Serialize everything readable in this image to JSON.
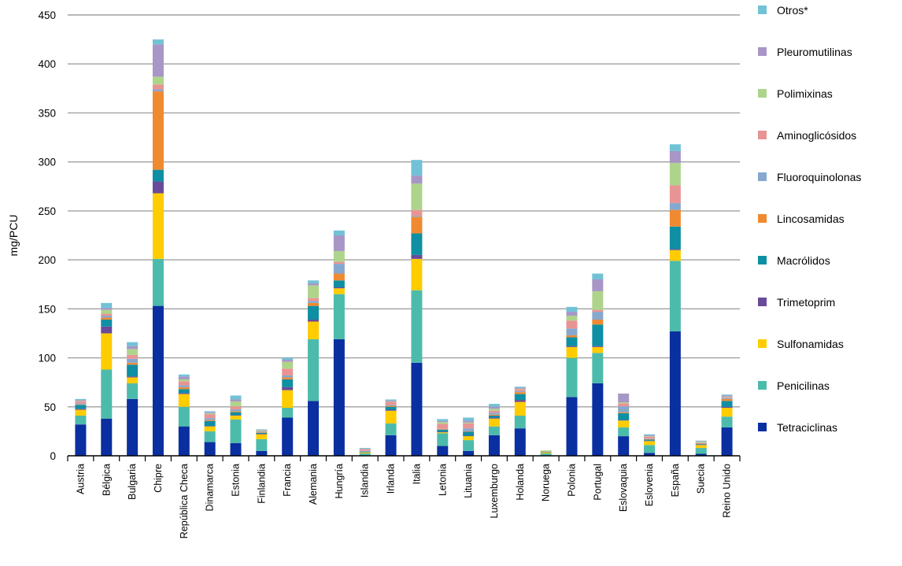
{
  "chart_data": {
    "type": "bar",
    "stacked": true,
    "title": "",
    "xlabel": "",
    "ylabel": "mg/PCU",
    "ylim": [
      0,
      450
    ],
    "yticks": [
      0,
      50,
      100,
      150,
      200,
      250,
      300,
      350,
      400,
      450
    ],
    "grid": true,
    "legend_position": "right",
    "categories": [
      "Austria",
      "Bélgica",
      "Bulgaria",
      "Chipre",
      "República Checa",
      "Dinamarca",
      "Estonia",
      "Finlandia",
      "Francia",
      "Alemania",
      "Hungría",
      "Islandia",
      "Irlanda",
      "Italia",
      "Letonia",
      "Lituania",
      "Luxemburgo",
      "Holanda",
      "Noruega",
      "Polonia",
      "Portugal",
      "Eslovaquia",
      "Eslovenia",
      "España",
      "Suecia",
      "Reino Unido"
    ],
    "series": [
      {
        "name": "Tetraciclinas",
        "color": "#0a2fa0",
        "values": [
          32,
          38,
          58,
          153,
          30,
          14,
          13,
          5,
          39,
          56,
          119,
          0.5,
          21,
          95,
          10,
          5,
          21,
          28,
          0.5,
          60,
          74,
          20,
          3,
          127,
          2,
          29
        ]
      },
      {
        "name": "Penicilinas",
        "color": "#4dbbab",
        "values": [
          9,
          50,
          16,
          48,
          20,
          11,
          24,
          12,
          10,
          63,
          46,
          2,
          12,
          74,
          13,
          11,
          9,
          13,
          2,
          40,
          31,
          9,
          8,
          72,
          6,
          11
        ]
      },
      {
        "name": "Sulfonamidas",
        "color": "#ffcc00",
        "values": [
          6,
          37,
          6,
          67,
          13,
          5,
          4,
          5,
          18,
          18,
          6,
          1,
          13,
          32,
          1,
          4,
          8,
          14,
          1,
          11,
          6,
          7,
          4,
          11,
          3,
          9
        ]
      },
      {
        "name": "Trimetoprim",
        "color": "#6a4a9a",
        "values": [
          1,
          7,
          1,
          12,
          1,
          0.5,
          0.5,
          0.5,
          3,
          2,
          1,
          0,
          1,
          4,
          0.5,
          0.5,
          1,
          2,
          0,
          1,
          1,
          0.5,
          0.5,
          1,
          0.5,
          1
        ]
      },
      {
        "name": "Macrólidos",
        "color": "#0e8fa3",
        "values": [
          4,
          7,
          12,
          12,
          4,
          5,
          3,
          1,
          8,
          14,
          7,
          0.5,
          3,
          22,
          2,
          4,
          2,
          6,
          0.5,
          9,
          22,
          7,
          1,
          23,
          0.5,
          6
        ]
      },
      {
        "name": "Lincosamidas",
        "color": "#f08a30",
        "values": [
          0.5,
          2,
          2,
          80,
          2,
          1,
          1,
          0.5,
          2,
          3,
          7,
          0,
          1,
          17,
          0.5,
          0.5,
          1,
          2,
          0,
          2,
          5,
          1,
          0.5,
          17,
          0.5,
          2
        ]
      },
      {
        "name": "Fluoroquinolonas",
        "color": "#86a8cf",
        "values": [
          1,
          2,
          4,
          2,
          2,
          2,
          2,
          0.5,
          2,
          2,
          10,
          1,
          1,
          1,
          0.5,
          3,
          2,
          1,
          0,
          7,
          8,
          6,
          0.5,
          7,
          0.5,
          1
        ]
      },
      {
        "name": "Aminoglicósidos",
        "color": "#e99494",
        "values": [
          2,
          2,
          4,
          5,
          4,
          4,
          3,
          0.5,
          7,
          3,
          2,
          2,
          3,
          6,
          5,
          5,
          2,
          2,
          0.5,
          8,
          2,
          3,
          2,
          18,
          0.5,
          1
        ]
      },
      {
        "name": "Polimixinas",
        "color": "#aed48c",
        "values": [
          0.5,
          4,
          6,
          8,
          2,
          1,
          5,
          1,
          7,
          13,
          11,
          0,
          0.5,
          27,
          2,
          1,
          2,
          0.5,
          1,
          5,
          19,
          1,
          0.5,
          23,
          1,
          0.5
        ]
      },
      {
        "name": "Pleuromutilinas",
        "color": "#a796c6",
        "values": [
          1,
          2,
          3,
          33,
          3,
          1,
          2,
          0.5,
          2,
          2,
          16,
          0,
          1,
          8,
          1,
          2,
          2,
          1,
          0,
          4,
          12,
          9,
          1,
          12,
          0.5,
          1
        ]
      },
      {
        "name": "Otros*",
        "color": "#72c2d6",
        "values": [
          1,
          5,
          4,
          5,
          2,
          1,
          4,
          0.5,
          2,
          3,
          5,
          1,
          1,
          16,
          2,
          3,
          3,
          1,
          0,
          5,
          6,
          0,
          1,
          7,
          0.5,
          1
        ]
      }
    ]
  }
}
